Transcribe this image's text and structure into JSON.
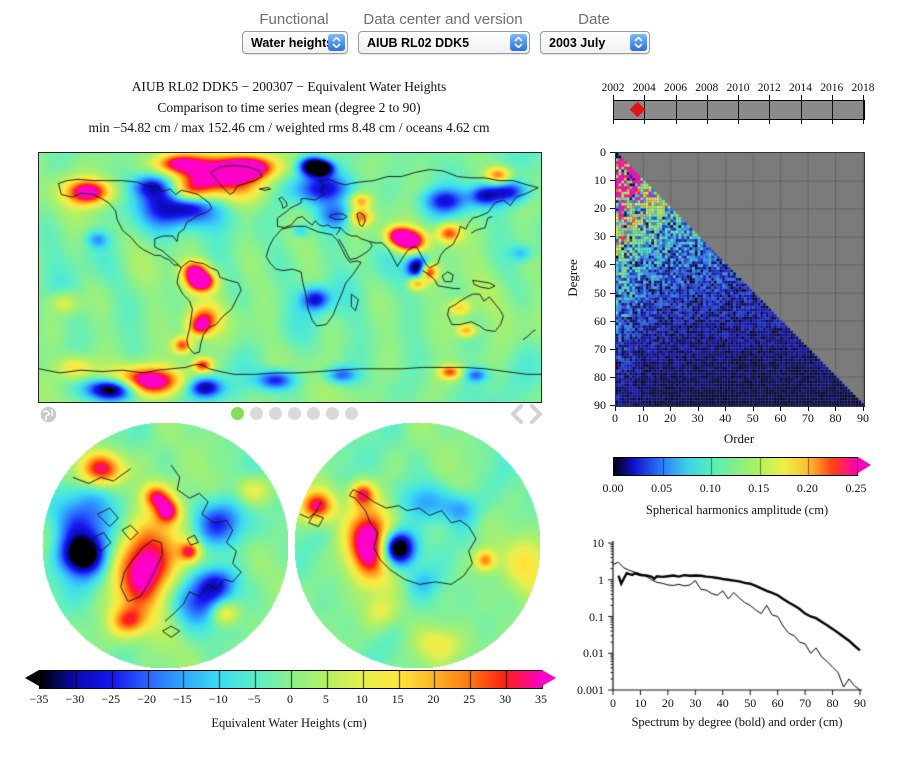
{
  "controls": {
    "functional": {
      "label": "Functional",
      "value": "Water heights"
    },
    "datacenter": {
      "label": "Data center and version",
      "value": "AIUB RL02 DDK5"
    },
    "date": {
      "label": "Date",
      "value": "2003 July"
    }
  },
  "figure": {
    "title_line1": "AIUB RL02 DDK5 − 200307 − Equivalent Water Heights",
    "title_line2": "Comparison to time series mean (degree 2 to 90)",
    "title_line3": "min −54.82 cm / max 152.46 cm / weighted rms 8.48 cm / oceans 4.62 cm"
  },
  "nav": {
    "dots_total": 7,
    "active_index": 0,
    "active_color": "#82df52",
    "inactive_color": "#d9d9d9",
    "chevron_color": "#d2d2d2",
    "globe_color": "#c9c9c9"
  },
  "colormaps": {
    "ewh": [
      [
        0,
        "#000000"
      ],
      [
        0.071,
        "#0a0ab4"
      ],
      [
        0.143,
        "#1616f0"
      ],
      [
        0.214,
        "#2a64ff"
      ],
      [
        0.286,
        "#30a8ff"
      ],
      [
        0.357,
        "#3cdcf0"
      ],
      [
        0.429,
        "#5aeec8"
      ],
      [
        0.5,
        "#8cf08c"
      ],
      [
        0.571,
        "#b4f064"
      ],
      [
        0.643,
        "#e6f050"
      ],
      [
        0.714,
        "#ffe63c"
      ],
      [
        0.786,
        "#ffb428"
      ],
      [
        0.857,
        "#ff7814"
      ],
      [
        0.929,
        "#ff1e14"
      ],
      [
        1,
        "#ff00c8"
      ]
    ],
    "amp": [
      [
        0,
        "#000014"
      ],
      [
        0.08,
        "#1212c8"
      ],
      [
        0.2,
        "#2a7eff"
      ],
      [
        0.3,
        "#3cd2e6"
      ],
      [
        0.4,
        "#55eec0"
      ],
      [
        0.5,
        "#82f08a"
      ],
      [
        0.6,
        "#b4f05c"
      ],
      [
        0.7,
        "#eef04a"
      ],
      [
        0.8,
        "#ffc030"
      ],
      [
        0.9,
        "#ff4414"
      ],
      [
        1,
        "#ff00b4"
      ]
    ]
  },
  "colorbar_ewh": {
    "label": "Equivalent Water Heights (cm)",
    "ticks": [
      "−35",
      "−30",
      "−25",
      "−20",
      "−15",
      "−10",
      "−5",
      "0",
      "5",
      "10",
      "15",
      "20",
      "25",
      "30",
      "35"
    ]
  },
  "colorbar_amp": {
    "label": "Spherical harmonics amplitude (cm)",
    "ticks": [
      "0.00",
      "0.05",
      "0.10",
      "0.15",
      "0.20",
      "0.25"
    ]
  },
  "chart_data": [
    {
      "id": "timeline",
      "type": "timeline",
      "year_ticks": [
        "2002",
        "2004",
        "2006",
        "2008",
        "2010",
        "2012",
        "2014",
        "2016",
        "2018"
      ],
      "year_range": [
        2002,
        2018
      ],
      "marker": {
        "year": 2003.55,
        "color": "#e51212",
        "shape": "diamond"
      },
      "bar_color": "#8a8a8a"
    },
    {
      "id": "world_map",
      "type": "heatmap",
      "units": "cm",
      "value_range": [
        -35,
        35
      ],
      "min": -54.82,
      "max": 152.46,
      "weighted_rms": 8.48,
      "oceans_rms": 4.62,
      "features": [
        [
          0.1,
          0.155,
          16,
          9,
          40
        ],
        [
          0.35,
          0.1,
          30,
          16,
          46
        ],
        [
          0.3,
          0.17,
          14,
          10,
          38
        ],
        [
          0.414,
          0.055,
          20,
          8,
          38
        ],
        [
          0.275,
          0.04,
          16,
          7,
          30
        ],
        [
          0.543,
          0.05,
          10,
          7,
          -40
        ],
        [
          0.285,
          0.2,
          30,
          16,
          -34
        ],
        [
          0.302,
          0.2,
          12,
          8,
          -22
        ],
        [
          0.22,
          0.13,
          14,
          8,
          -20
        ],
        [
          0.566,
          0.14,
          22,
          11,
          -28
        ],
        [
          0.593,
          0.25,
          13,
          9,
          -18
        ],
        [
          0.639,
          0.255,
          8,
          6,
          26
        ],
        [
          0.64,
          0.19,
          7,
          5,
          20
        ],
        [
          0.808,
          0.19,
          16,
          9,
          -22
        ],
        [
          0.937,
          0.155,
          14,
          8,
          -24
        ],
        [
          0.914,
          0.088,
          9,
          6,
          30
        ],
        [
          0.712,
          0.33,
          9,
          7,
          30
        ],
        [
          0.739,
          0.35,
          11,
          8,
          44
        ],
        [
          0.815,
          0.32,
          9,
          7,
          32
        ],
        [
          0.755,
          0.46,
          8,
          9,
          -42
        ],
        [
          0.774,
          0.475,
          6,
          6,
          40
        ],
        [
          0.752,
          0.52,
          6,
          5,
          28
        ],
        [
          0.308,
          0.47,
          9,
          7,
          32
        ],
        [
          0.322,
          0.515,
          10,
          7,
          44
        ],
        [
          0.328,
          0.66,
          11,
          9,
          24
        ],
        [
          0.318,
          0.7,
          9,
          7,
          26
        ],
        [
          0.285,
          0.77,
          7,
          6,
          30
        ],
        [
          0.55,
          0.585,
          10,
          8,
          -26
        ],
        [
          0.838,
          0.62,
          8,
          6,
          20
        ],
        [
          0.851,
          0.71,
          7,
          5,
          24
        ],
        [
          0.325,
          0.85,
          7,
          5,
          32
        ],
        [
          0.21,
          0.915,
          26,
          10,
          46
        ],
        [
          0.146,
          0.945,
          18,
          8,
          -48
        ],
        [
          0.33,
          0.94,
          12,
          7,
          -30
        ],
        [
          0.47,
          0.91,
          13,
          7,
          -26
        ],
        [
          0.6,
          0.89,
          11,
          6,
          -20
        ],
        [
          0.818,
          0.878,
          8,
          5,
          28
        ],
        [
          0.87,
          0.89,
          8,
          5,
          -18
        ],
        [
          0.05,
          0.6,
          10,
          8,
          14
        ],
        [
          0.07,
          0.86,
          12,
          8,
          18
        ],
        [
          0.115,
          0.345,
          8,
          6,
          -14
        ],
        [
          0.52,
          0.31,
          6,
          5,
          -12
        ],
        [
          0.885,
          0.17,
          10,
          7,
          -20
        ],
        [
          0.96,
          0.4,
          8,
          6,
          -12
        ],
        [
          0.565,
          0.06,
          8,
          5,
          -30
        ]
      ]
    },
    {
      "id": "arctic_map",
      "type": "heatmap",
      "projection": "north-polar",
      "value_range": [
        -35,
        35
      ],
      "features": [
        [
          -0.18,
          0.15,
          0.22,
          0.3,
          46
        ],
        [
          -0.52,
          -0.62,
          0.13,
          0.1,
          40
        ],
        [
          -0.62,
          -0.05,
          0.3,
          0.28,
          -30
        ],
        [
          -0.68,
          0.08,
          0.12,
          0.1,
          -26
        ],
        [
          -0.08,
          -0.4,
          0.08,
          0.07,
          28
        ],
        [
          0.02,
          -0.28,
          0.07,
          0.07,
          30
        ],
        [
          0.45,
          -0.18,
          0.16,
          0.13,
          -22
        ],
        [
          0.25,
          0.45,
          0.18,
          0.15,
          -25
        ],
        [
          0.42,
          0.3,
          0.11,
          0.09,
          -18
        ],
        [
          0.2,
          0.05,
          0.06,
          0.06,
          30
        ],
        [
          0.48,
          0.55,
          0.08,
          0.07,
          20
        ],
        [
          -0.95,
          0.0,
          0.15,
          0.2,
          18
        ],
        [
          -0.3,
          0.62,
          0.1,
          0.08,
          22
        ],
        [
          0.7,
          -0.45,
          0.1,
          0.08,
          14
        ]
      ]
    },
    {
      "id": "antarctic_map",
      "type": "heatmap",
      "projection": "south-polar",
      "value_range": [
        -35,
        35
      ],
      "features": [
        [
          -0.38,
          -0.02,
          0.13,
          0.2,
          46
        ],
        [
          -0.17,
          0.02,
          0.1,
          0.1,
          -50
        ],
        [
          -0.82,
          -0.32,
          0.1,
          0.09,
          35
        ],
        [
          -0.45,
          -0.42,
          0.07,
          0.07,
          30
        ],
        [
          0.05,
          -0.35,
          0.13,
          0.11,
          -15
        ],
        [
          0.35,
          -0.3,
          0.1,
          0.09,
          -13
        ],
        [
          0.55,
          0.12,
          0.06,
          0.06,
          25
        ],
        [
          0.9,
          0.15,
          0.13,
          0.15,
          15
        ],
        [
          0.2,
          0.8,
          0.14,
          0.1,
          12
        ],
        [
          -0.3,
          0.55,
          0.1,
          0.09,
          10
        ],
        [
          0.05,
          0.3,
          0.09,
          0.08,
          -8
        ]
      ]
    },
    {
      "id": "degree_order",
      "type": "heatmap",
      "xlabel": "Order",
      "ylabel": "Degree",
      "x_ticks": [
        "0",
        "10",
        "20",
        "30",
        "40",
        "50",
        "60",
        "70",
        "80",
        "90"
      ],
      "y_ticks": [
        "0",
        "10",
        "20",
        "30",
        "40",
        "50",
        "60",
        "70",
        "80",
        "90"
      ],
      "x_range": [
        0,
        90
      ],
      "y_range": [
        0,
        90
      ],
      "amplitude_range": [
        0,
        0.25
      ],
      "background": "#7b7b7b",
      "model": {
        "base_amp": 0.34,
        "degree_scale": 26,
        "order_boost": 0.9,
        "order_scale": 9,
        "noise_min": 0.2,
        "noise_range": 1.55,
        "dark_fraction": 0.05,
        "seed": 7,
        "min_degree": 2
      }
    },
    {
      "id": "spectrum",
      "type": "line",
      "log_y": true,
      "caption": "Spectrum by degree (bold) and order (cm)",
      "ylim": [
        0.001,
        10
      ],
      "xlim": [
        0,
        90
      ],
      "x_ticks": [
        "0",
        "10",
        "20",
        "30",
        "40",
        "50",
        "60",
        "70",
        "80",
        "90"
      ],
      "y_tick_labels": [
        "10",
        "1",
        "0.1",
        "0.01",
        "0.001"
      ],
      "series": [
        {
          "name": "degree (bold)",
          "bold": true,
          "x": [
            2,
            3,
            4,
            5,
            6,
            7,
            8,
            10,
            12,
            14,
            15,
            16,
            18,
            20,
            22,
            24,
            26,
            28,
            30,
            32,
            34,
            36,
            38,
            40,
            42,
            44,
            46,
            48,
            50,
            52,
            54,
            56,
            58,
            60,
            62,
            64,
            66,
            68,
            70,
            72,
            74,
            76,
            78,
            80,
            82,
            84,
            86,
            88,
            90
          ],
          "y": [
            1.3,
            0.78,
            1.1,
            1.5,
            1.42,
            1.35,
            1.5,
            1.35,
            1.3,
            1.22,
            1.05,
            1.25,
            1.2,
            1.25,
            1.3,
            1.22,
            1.33,
            1.28,
            1.3,
            1.28,
            1.22,
            1.18,
            1.12,
            1.05,
            1.0,
            0.95,
            0.9,
            0.82,
            0.78,
            0.68,
            0.58,
            0.5,
            0.44,
            0.38,
            0.3,
            0.24,
            0.2,
            0.16,
            0.12,
            0.1,
            0.09,
            0.072,
            0.058,
            0.046,
            0.036,
            0.028,
            0.022,
            0.016,
            0.012
          ]
        },
        {
          "name": "order",
          "bold": false,
          "x": [
            0,
            2,
            4,
            6,
            8,
            10,
            12,
            14,
            16,
            18,
            20,
            22,
            24,
            26,
            28,
            30,
            32,
            34,
            36,
            38,
            40,
            42,
            44,
            46,
            48,
            50,
            52,
            54,
            56,
            58,
            60,
            62,
            64,
            66,
            68,
            70,
            72,
            74,
            76,
            78,
            80,
            82,
            84,
            86,
            88,
            90
          ],
          "y": [
            2.6,
            3.0,
            2.1,
            1.8,
            1.6,
            1.45,
            1.25,
            1.0,
            0.85,
            0.8,
            0.72,
            0.7,
            0.75,
            0.68,
            0.72,
            0.95,
            0.55,
            0.52,
            0.42,
            0.38,
            0.5,
            0.3,
            0.45,
            0.32,
            0.24,
            0.2,
            0.15,
            0.12,
            0.2,
            0.11,
            0.1,
            0.055,
            0.035,
            0.03,
            0.02,
            0.018,
            0.01,
            0.014,
            0.008,
            0.006,
            0.0042,
            0.003,
            0.0012,
            0.002,
            0.0013,
            0.001
          ]
        }
      ]
    }
  ],
  "axis_labels": {
    "degree": "Degree",
    "order": "Order"
  }
}
